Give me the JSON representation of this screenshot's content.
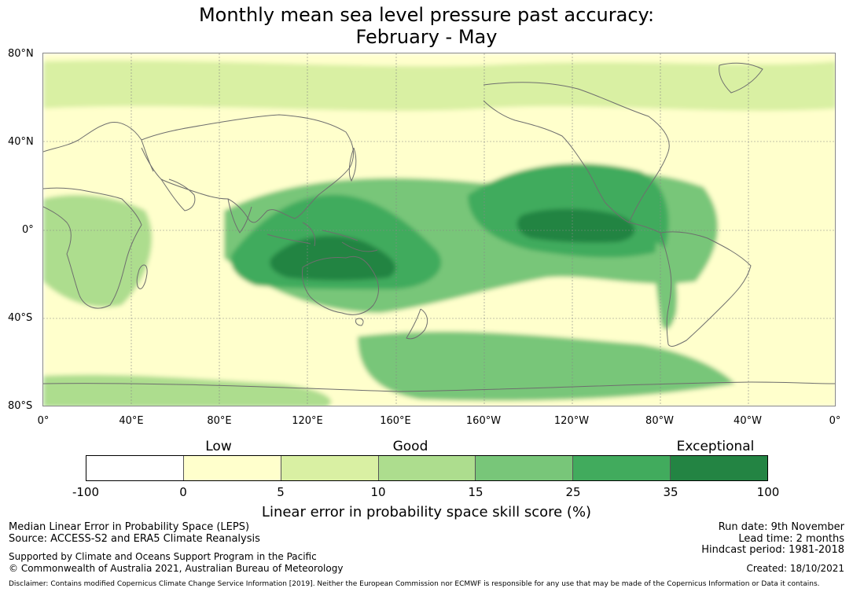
{
  "header": {
    "title_line1": "Monthly mean sea level pressure past accuracy:",
    "title_line2": "February - May"
  },
  "map": {
    "lat_labels": [
      "80°N",
      "40°N",
      "0°",
      "40°S",
      "80°S"
    ],
    "lon_labels": [
      "0°",
      "40°E",
      "80°E",
      "120°E",
      "160°E",
      "160°W",
      "120°W",
      "80°W",
      "40°W",
      "0°"
    ],
    "region_levels": {
      "pacific_core": 6,
      "maritime_continent": 6,
      "west_pacific_band": 5,
      "east_pacific_band": 5,
      "tropical_pacific": 4,
      "southern_ocean": 4,
      "land_tropics": 3,
      "northern_midlatitudes": 2
    }
  },
  "legend": {
    "categories": [
      "Low",
      "Good",
      "Exceptional"
    ],
    "ticks": [
      "-100",
      "0",
      "5",
      "10",
      "15",
      "25",
      "35",
      "100"
    ],
    "colors": [
      "#ffffff",
      "#ffffcc",
      "#d9f0a3",
      "#addd8e",
      "#78c679",
      "#41ab5d",
      "#238443"
    ],
    "axis_label": "Linear error in probability space skill score (%)"
  },
  "footer": {
    "left": {
      "line1": "Median Linear Error in Probability Space (LEPS)",
      "line2": "Source: ACCESS-S2 and ERA5 Climate Reanalysis",
      "line3": "Supported by Climate and Oceans Support Program in the Pacific",
      "line4": "© Commonwealth of Australia 2021, Australian Bureau of Meteorology"
    },
    "right": {
      "run_date": "Run date: 9th November",
      "lead_time": "Lead time: 2 months",
      "hindcast": "Hindcast period: 1981-2018",
      "created": "Created: 18/10/2021"
    },
    "disclaimer": "Disclaimer: Contains modified Copernicus Climate Change Service Information [2019]. Neither the European Commission nor ECMWF is responsible for any use that may be made of the Copernicus Information or Data it contains."
  }
}
